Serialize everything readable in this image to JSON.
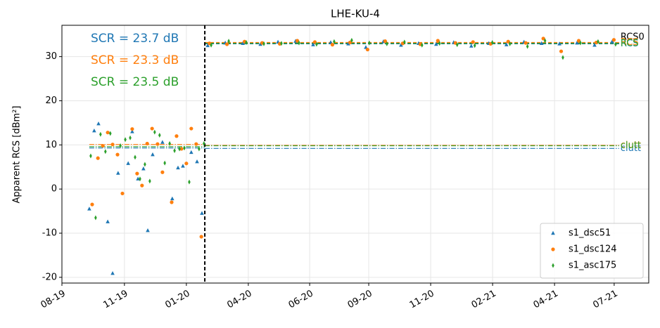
{
  "chart_data": {
    "type": "scatter",
    "title": "LHE-KU-4",
    "y_label": "Apparent RCS [dBm²]",
    "xlim": [
      2019.583,
      2021.62
    ],
    "ylim": [
      -21.3,
      37.1
    ],
    "xticks": [
      {
        "value": 2019.583,
        "label": "08-19"
      },
      {
        "value": 2019.8,
        "label": "11-19"
      },
      {
        "value": 2020.015,
        "label": "01-20"
      },
      {
        "value": 2020.23,
        "label": "04-20"
      },
      {
        "value": 2020.443,
        "label": "06-20"
      },
      {
        "value": 2020.648,
        "label": "09-20"
      },
      {
        "value": 2020.863,
        "label": "11-20"
      },
      {
        "value": 2021.078,
        "label": "02-21"
      },
      {
        "value": 2021.293,
        "label": "04-21"
      },
      {
        "value": 2021.5,
        "label": "07-21"
      }
    ],
    "yticks": [
      -20,
      -10,
      0,
      10,
      20,
      30
    ],
    "grid": true,
    "legend": "lower right",
    "vline": 2020.079,
    "series": [
      {
        "name": "s1_dsc51",
        "color": "#1f77b4",
        "marker": "triangle",
        "x": [
          2019.678,
          2019.695,
          2019.71,
          2019.742,
          2019.759,
          2019.778,
          2019.813,
          2019.827,
          2019.847,
          2019.866,
          2019.881,
          2019.898,
          2019.932,
          2019.966,
          2019.986,
          2020.003,
          2020.032,
          2020.052,
          2020.069,
          2020.089,
          2020.15,
          2020.211,
          2020.272,
          2020.333,
          2020.394,
          2020.455,
          2020.516,
          2020.577,
          2020.638,
          2020.699,
          2020.76,
          2020.821,
          2020.882,
          2020.943,
          2021.004,
          2021.065,
          2021.126,
          2021.187,
          2021.248,
          2021.31,
          2021.371,
          2021.432,
          2021.493
        ],
        "values": [
          -4.5,
          13.2,
          14.8,
          -7.4,
          -19.1,
          3.6,
          5.8,
          13,
          2.3,
          4.6,
          -9.4,
          7.8,
          10.6,
          -2.2,
          4.8,
          5.2,
          8.3,
          6.2,
          -5.5,
          32.5,
          33.1,
          33,
          32.8,
          33.3,
          33.5,
          32.7,
          33.2,
          32.9,
          32.1,
          33.4,
          32.6,
          33,
          32.8,
          33.2,
          32.4,
          33,
          32.7,
          33.3,
          33,
          32.9,
          33.1,
          32.6,
          33.4
        ]
      },
      {
        "name": "s1_dsc124",
        "color": "#ff7f0e",
        "marker": "circle",
        "x": [
          2019.688,
          2019.708,
          2019.725,
          2019.742,
          2019.759,
          2019.776,
          2019.793,
          2019.827,
          2019.844,
          2019.861,
          2019.879,
          2019.896,
          2019.915,
          2019.932,
          2019.964,
          2019.981,
          2019.998,
          2020.015,
          2020.032,
          2020.049,
          2020.067,
          2020.095,
          2020.156,
          2020.217,
          2020.278,
          2020.339,
          2020.4,
          2020.461,
          2020.522,
          2020.583,
          2020.644,
          2020.705,
          2020.766,
          2020.827,
          2020.888,
          2020.949,
          2021.01,
          2021.071,
          2021.132,
          2021.193,
          2021.254,
          2021.316,
          2021.377,
          2021.438,
          2021.499
        ],
        "values": [
          -3.5,
          7,
          9.8,
          12.8,
          10.1,
          7.8,
          -1,
          13.6,
          3.5,
          0.8,
          10.3,
          13.7,
          10.2,
          3.8,
          -3,
          12,
          9.1,
          5.8,
          13.7,
          10.2,
          -10.8,
          33,
          32.8,
          33.4,
          33.1,
          32.9,
          33.6,
          33.3,
          32.7,
          33.2,
          31.6,
          33.5,
          33,
          32.8,
          33.6,
          33.1,
          33.3,
          32.9,
          33.4,
          33.1,
          34.1,
          31.2,
          33.6,
          33.2,
          33.8
        ]
      },
      {
        "name": "s1_asc175",
        "color": "#2ca02c",
        "marker": "thin_diamond",
        "x": [
          2019.683,
          2019.7,
          2019.717,
          2019.734,
          2019.751,
          2019.786,
          2019.803,
          2019.82,
          2019.837,
          2019.854,
          2019.871,
          2019.888,
          2019.905,
          2019.922,
          2019.94,
          2019.957,
          2019.974,
          2019.991,
          2020.008,
          2020.025,
          2020.059,
          2020.076,
          2020.101,
          2020.162,
          2020.223,
          2020.284,
          2020.345,
          2020.406,
          2020.467,
          2020.528,
          2020.589,
          2020.65,
          2020.711,
          2020.772,
          2020.833,
          2020.894,
          2020.955,
          2021.016,
          2021.077,
          2021.138,
          2021.199,
          2021.26,
          2021.322,
          2021.383,
          2021.444,
          2021.505
        ],
        "values": [
          7.5,
          -6.5,
          12.4,
          8.5,
          12.6,
          9.8,
          11.2,
          11.6,
          7.2,
          2.3,
          5.6,
          1.8,
          12.9,
          12.2,
          5.9,
          10.3,
          8.7,
          9.1,
          9.3,
          1.6,
          9.1,
          10.3,
          32.6,
          33.5,
          33.2,
          32.9,
          33,
          33.1,
          32.8,
          33.4,
          33.7,
          33.1,
          32.9,
          33.3,
          32.6,
          33,
          32.7,
          32.5,
          33.2,
          32.9,
          32.3,
          33.6,
          29.8,
          33.1,
          33.4,
          32.8
        ]
      }
    ],
    "lines": [
      {
        "value": 9.3,
        "x_range": [
          2019.678,
          2020.079
        ],
        "color": "#1f77b4",
        "style": "dashdot"
      },
      {
        "value": 10.1,
        "x_range": [
          2019.678,
          2020.079
        ],
        "color": "#ff7f0e",
        "style": "dashdot"
      },
      {
        "value": 9.6,
        "x_range": [
          2019.678,
          2020.079
        ],
        "color": "#2ca02c",
        "style": "dashdot"
      },
      {
        "value": 9.2,
        "x_range": [
          2020.079,
          2021.517
        ],
        "color": "#1f77b4",
        "style": "dashdot",
        "label": "clutt"
      },
      {
        "value": 9.9,
        "x_range": [
          2020.079,
          2021.517
        ],
        "color": "#ff7f0e",
        "style": "dashdot",
        "label": "clutt"
      },
      {
        "value": 9.8,
        "x_range": [
          2020.079,
          2021.517
        ],
        "color": "#2ca02c",
        "style": "dashdot",
        "label": "clutt"
      },
      {
        "value": 33,
        "x_range": [
          2020.079,
          2021.517
        ],
        "color": "#000000",
        "style": "dashed",
        "label": "RCS0"
      },
      {
        "value": 32.9,
        "x_range": [
          2020.079,
          2021.517
        ],
        "color": "#1f77b4",
        "style": "dashed",
        "label": "RCS"
      },
      {
        "value": 33.2,
        "x_range": [
          2020.079,
          2021.517
        ],
        "color": "#ff7f0e",
        "style": "dashed",
        "label": "RCS"
      },
      {
        "value": 33,
        "x_range": [
          2020.079,
          2021.517
        ],
        "color": "#2ca02c",
        "style": "dashed",
        "label": "RCS"
      }
    ],
    "annotations": [
      {
        "text": "SCR = 23.7 dB",
        "color": "#1f77b4"
      },
      {
        "text": "SCR = 23.3 dB",
        "color": "#ff7f0e"
      },
      {
        "text": "SCR = 23.5 dB",
        "color": "#2ca02c"
      }
    ]
  }
}
